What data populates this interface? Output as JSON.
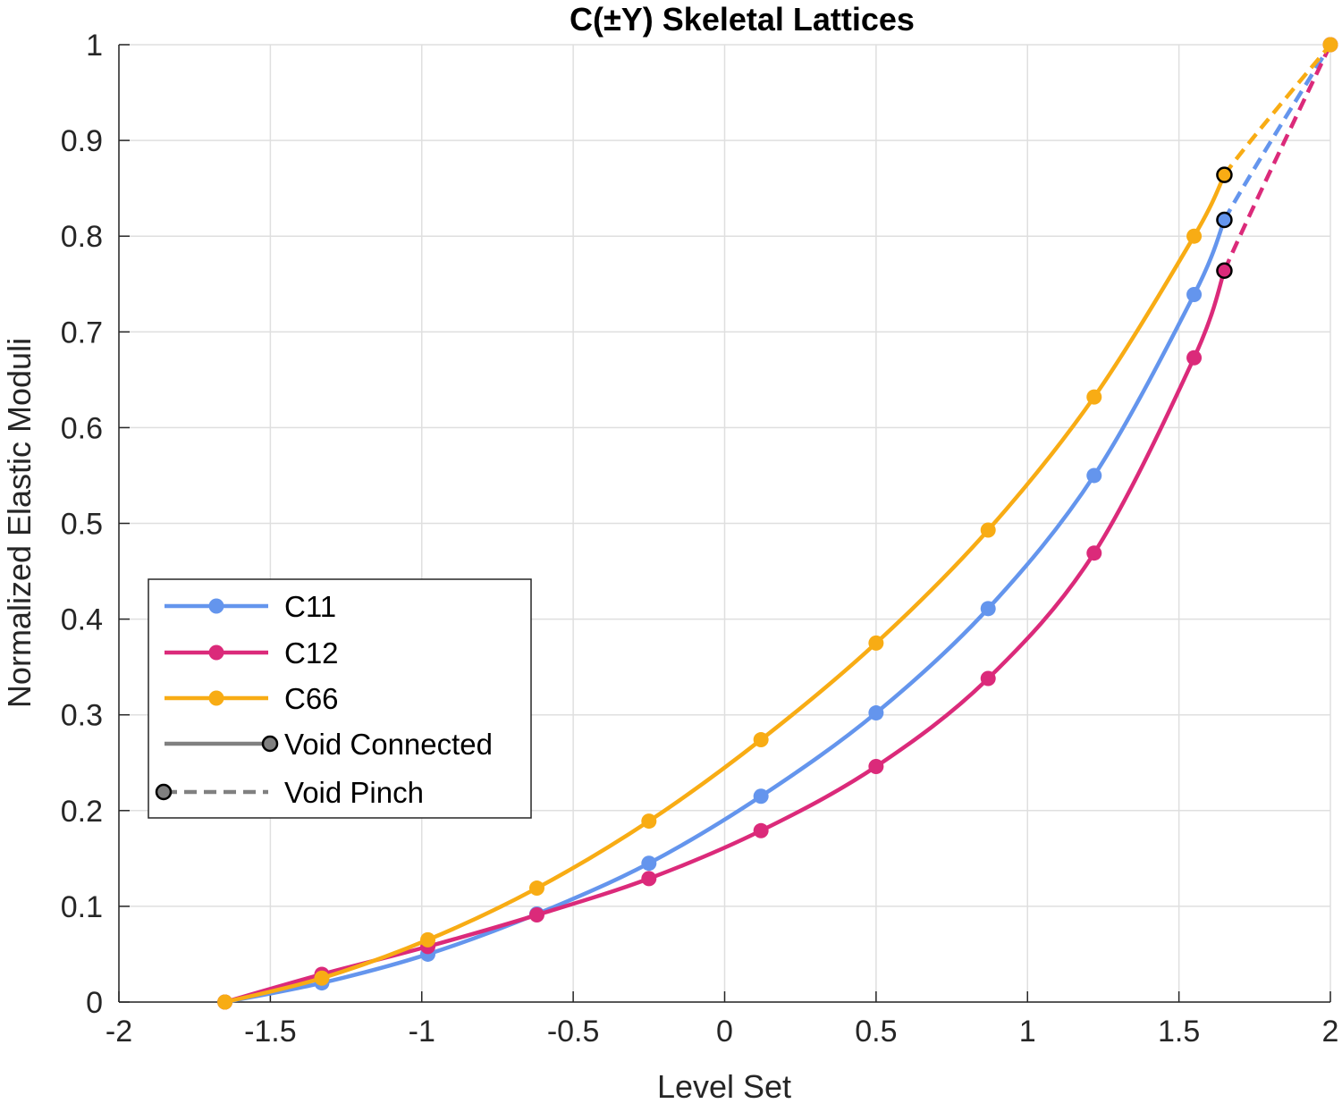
{
  "chart_data": {
    "type": "line",
    "title": "C(±Y) Skeletal Lattices",
    "xlabel": "Level Set",
    "ylabel": "Normalized Elastic Moduli",
    "xlim": [
      -2,
      2
    ],
    "ylim": [
      0,
      1
    ],
    "xticks": [
      -2,
      -1.5,
      -1,
      -0.5,
      0,
      0.5,
      1,
      1.5,
      2
    ],
    "xtick_labels": [
      "-2",
      "-1.5",
      "-1",
      "-0.5",
      "0",
      "0.5",
      "1",
      "1.5",
      "2"
    ],
    "yticks": [
      0,
      0.1,
      0.2,
      0.3,
      0.4,
      0.5,
      0.6,
      0.7,
      0.8,
      0.9,
      1
    ],
    "ytick_labels": [
      "0",
      "0.1",
      "0.2",
      "0.3",
      "0.4",
      "0.5",
      "0.6",
      "0.7",
      "0.8",
      "0.9",
      "1"
    ],
    "grid": true,
    "legend_position": "lower-left",
    "x": [
      -1.65,
      -1.33,
      -0.98,
      -0.62,
      -0.25,
      0.12,
      0.5,
      0.87,
      1.22,
      1.55
    ],
    "series": [
      {
        "name": "C11",
        "color": "#6495ED",
        "values": [
          0.0,
          0.02,
          0.05,
          0.092,
          0.145,
          0.215,
          0.302,
          0.411,
          0.55,
          0.739
        ],
        "pinch_point": [
          1.65,
          0.817
        ],
        "end_point": [
          2.0,
          1.0
        ]
      },
      {
        "name": "C12",
        "color": "#DB2A7A",
        "values": [
          0.0,
          0.029,
          0.058,
          0.091,
          0.129,
          0.179,
          0.246,
          0.338,
          0.469,
          0.673
        ],
        "pinch_point": [
          1.65,
          0.764
        ],
        "end_point": [
          2.0,
          1.0
        ]
      },
      {
        "name": "C66",
        "color": "#F8AC14",
        "values": [
          0.0,
          0.025,
          0.065,
          0.119,
          0.189,
          0.274,
          0.375,
          0.493,
          0.632,
          0.8
        ],
        "pinch_point": [
          1.65,
          0.864
        ],
        "end_point": [
          2.0,
          1.0
        ]
      }
    ],
    "legend": {
      "entries": [
        "C11",
        "C12",
        "C66",
        "Void Connected",
        "Void Pinch"
      ],
      "style_color": "#808080"
    }
  }
}
